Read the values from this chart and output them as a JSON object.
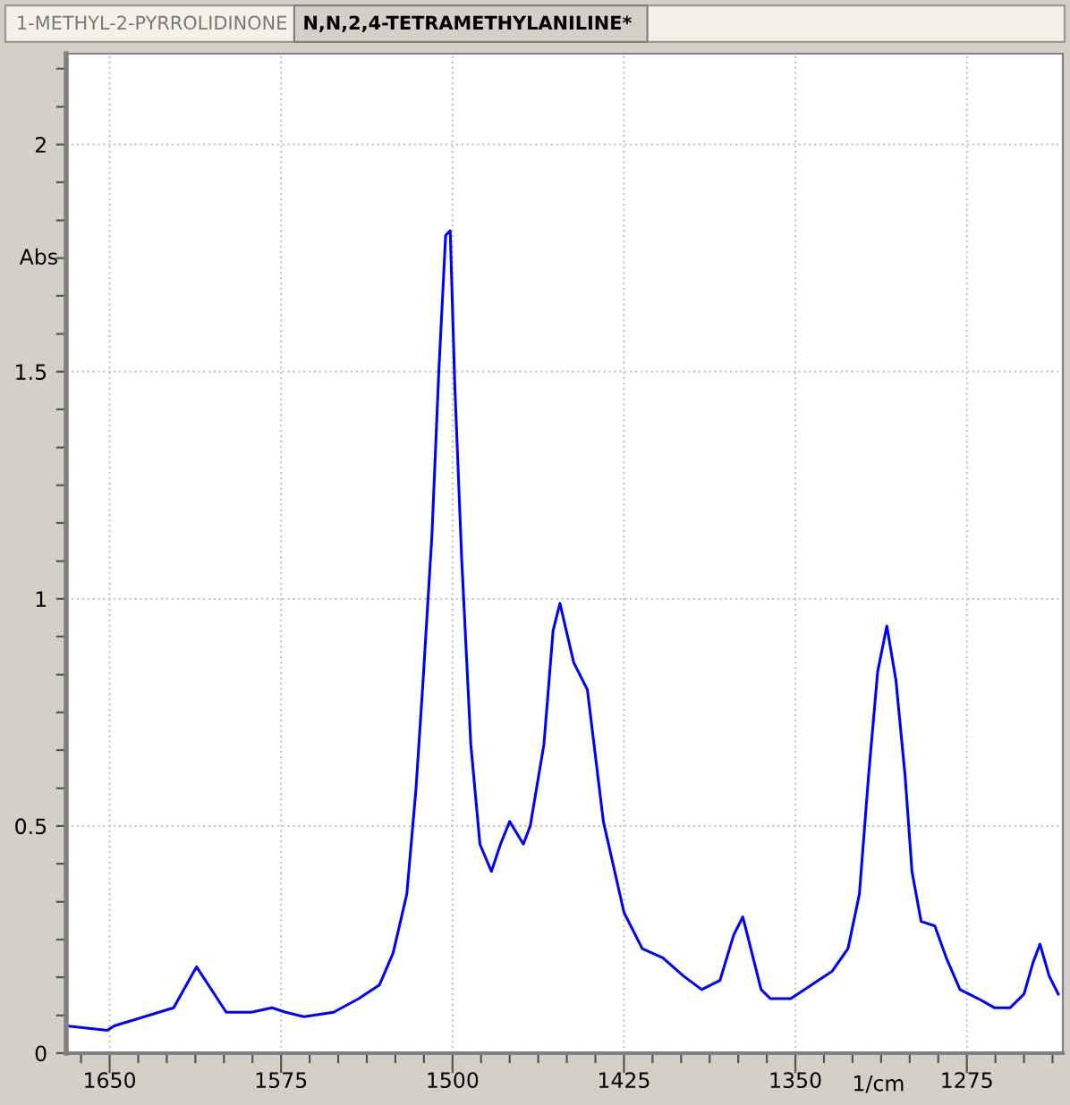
{
  "chart_data": {
    "type": "line",
    "title": "N,N,2,4-TETRAMETHYLANILINE*",
    "annotations": [
      "1-METHYL-2-PYRROLIDINONE"
    ],
    "xlabel": "1/cm",
    "ylabel": "Abs",
    "x": [
      1669,
      1651,
      1648,
      1622,
      1612,
      1599,
      1588,
      1579,
      1573,
      1565,
      1552,
      1541,
      1532,
      1526,
      1520,
      1516,
      1513,
      1509,
      1506,
      1503,
      1501,
      1499,
      1496,
      1492,
      1488,
      1483,
      1479,
      1475,
      1469,
      1466,
      1460,
      1456,
      1453,
      1447,
      1441,
      1434,
      1425,
      1417,
      1408,
      1399,
      1391,
      1383,
      1377,
      1373,
      1369,
      1365,
      1361,
      1352,
      1343,
      1334,
      1327,
      1322,
      1318,
      1314,
      1310,
      1306,
      1302,
      1299,
      1295,
      1289,
      1284,
      1278,
      1270,
      1263,
      1256,
      1250,
      1246,
      1243,
      1239,
      1235
    ],
    "series": [
      {
        "color": "#0000ff",
        "values": [
          0.06,
          0.05,
          0.06,
          0.1,
          0.19,
          0.09,
          0.09,
          0.1,
          0.09,
          0.08,
          0.09,
          0.12,
          0.15,
          0.22,
          0.35,
          0.58,
          0.81,
          1.14,
          1.5,
          1.8,
          1.81,
          1.47,
          1.09,
          0.68,
          0.46,
          0.4,
          0.46,
          0.51,
          0.46,
          0.5,
          0.68,
          0.93,
          0.99,
          0.86,
          0.8,
          0.51,
          0.31,
          0.23,
          0.21,
          0.17,
          0.14,
          0.16,
          0.26,
          0.3,
          0.22,
          0.14,
          0.12,
          0.12,
          0.15,
          0.18,
          0.23,
          0.35,
          0.61,
          0.84,
          0.94,
          0.82,
          0.61,
          0.4,
          0.29,
          0.28,
          0.21,
          0.14,
          0.12,
          0.1,
          0.1,
          0.13,
          0.2,
          0.24,
          0.17,
          0.13
        ]
      }
    ],
    "xlim": [
      1669,
      1233
    ],
    "xticks": [
      {
        "value": 1662.5,
        "label": null
      },
      1650,
      {
        "value": 1637.5,
        "label": null
      },
      {
        "value": 1625,
        "label": null
      },
      {
        "value": 1612.5,
        "label": null
      },
      {
        "value": 1600,
        "label": null
      },
      {
        "value": 1587.5,
        "label": null
      },
      1575,
      {
        "value": 1562.5,
        "label": null
      },
      {
        "value": 1550,
        "label": null
      },
      {
        "value": 1537.5,
        "label": null
      },
      {
        "value": 1525,
        "label": null
      },
      {
        "value": 1512.5,
        "label": null
      },
      1500,
      {
        "value": 1487.5,
        "label": null
      },
      {
        "value": 1475,
        "label": null
      },
      {
        "value": 1462.5,
        "label": null
      },
      {
        "value": 1450,
        "label": null
      },
      {
        "value": 1437.5,
        "label": null
      },
      1425,
      {
        "value": 1412.5,
        "label": null
      },
      {
        "value": 1400,
        "label": null
      },
      {
        "value": 1387.5,
        "label": null
      },
      {
        "value": 1375,
        "label": null
      },
      {
        "value": 1362.5,
        "label": null
      },
      1350,
      {
        "value": 1337.5,
        "label": null
      },
      {
        "value": 1325,
        "label": null
      },
      {
        "value": 1312.5,
        "label": null
      },
      {
        "value": 1300,
        "label": null
      },
      {
        "value": 1287.5,
        "label": null
      },
      1275,
      {
        "value": 1262.5,
        "label": null
      },
      {
        "value": 1250,
        "label": null
      },
      {
        "value": 1237.5,
        "label": null
      }
    ],
    "ylim": [
      0,
      2.2
    ],
    "yticks": [
      0,
      {
        "value": 0.083,
        "label": null
      },
      {
        "value": 0.167,
        "label": null
      },
      {
        "value": 0.25,
        "label": null
      },
      {
        "value": 0.333,
        "label": null
      },
      {
        "value": 0.417,
        "label": null
      },
      0.5,
      {
        "value": 0.583,
        "label": null
      },
      {
        "value": 0.667,
        "label": null
      },
      {
        "value": 0.75,
        "label": null
      },
      {
        "value": 0.833,
        "label": null
      },
      {
        "value": 0.917,
        "label": null
      },
      1,
      {
        "value": 1.083,
        "label": null
      },
      {
        "value": 1.167,
        "label": null
      },
      {
        "value": 1.25,
        "label": null
      },
      {
        "value": 1.333,
        "label": null
      },
      {
        "value": 1.417,
        "label": null
      },
      1.5,
      {
        "value": 1.583,
        "label": null
      },
      {
        "value": 1.667,
        "label": null
      },
      {
        "value": 1.75,
        "label": null
      },
      {
        "value": 1.833,
        "label": null
      },
      {
        "value": 1.917,
        "label": null
      },
      2,
      {
        "value": 2.083,
        "label": null
      },
      {
        "value": 2.167,
        "label": null
      }
    ],
    "grid": true,
    "legend": false,
    "marker": "none",
    "line_style": "solid"
  }
}
